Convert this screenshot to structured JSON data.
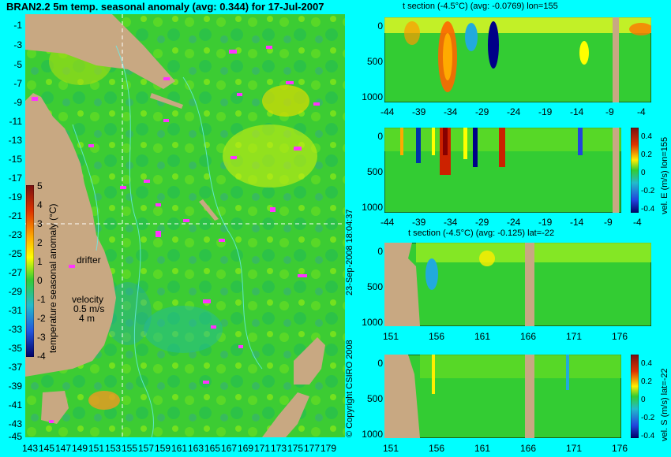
{
  "map": {
    "title": "BRAN2.2 5m temp. seasonal anomaly (avg: 0.344) for 17-Jul-2007",
    "lat_labels": [
      "-1",
      "-3",
      "-5",
      "-7",
      "-9",
      "-11",
      "-13",
      "-15",
      "-17",
      "-19",
      "-21",
      "-23",
      "-25",
      "-27",
      "-29",
      "-31",
      "-33",
      "-35",
      "-37",
      "-39",
      "-41",
      "-43",
      "-45"
    ],
    "lon_labels": [
      "143",
      "145",
      "147",
      "149",
      "151",
      "153",
      "155",
      "157",
      "159",
      "161",
      "163",
      "165",
      "167",
      "169",
      "171",
      "173",
      "175",
      "177",
      "179"
    ],
    "colorbar_label": "temperature seasonal anomaly (°C)",
    "colorbar_ticks": [
      "5",
      "4",
      "3",
      "2",
      "1",
      "0",
      "-1",
      "-2",
      "-3",
      "-4"
    ],
    "drifter_label": "drifter",
    "velocity_label": "velocity",
    "velocity_value": "0.5 m/s",
    "velocity_depth": "4 m",
    "timestamp": "23-Sep-2008 18:04:37",
    "copyright": "© Copyright CSIRO 2008"
  },
  "panels": [
    {
      "title": "t section (-4.5°C) (avg: -0.0769) lon=155",
      "x_labels": [
        "-44",
        "-39",
        "-34",
        "-29",
        "-24",
        "-19",
        "-14",
        "-9",
        "-4"
      ],
      "y_labels": [
        "0",
        "500",
        "1000"
      ],
      "side_label": ""
    },
    {
      "title": "",
      "x_labels": [
        "-44",
        "-39",
        "-34",
        "-29",
        "-24",
        "-19",
        "-14",
        "-9",
        "-4"
      ],
      "y_labels": [
        "0",
        "500",
        "1000"
      ],
      "side_label": "vel. E (m/s) lon=155",
      "cb_ticks": [
        "0.4",
        "0.2",
        "0",
        "-0.2",
        "-0.4"
      ]
    },
    {
      "title": "t section (-4.5°C) (avg: -0.125) lat=-22",
      "x_labels": [
        "151",
        "156",
        "161",
        "166",
        "171",
        "176"
      ],
      "y_labels": [
        "0",
        "500",
        "1000"
      ],
      "side_label": ""
    },
    {
      "title": "",
      "x_labels": [
        "151",
        "156",
        "161",
        "166",
        "171",
        "176"
      ],
      "y_labels": [
        "0",
        "500",
        "1000"
      ],
      "side_label": "vel. S (m/s) lat=-22",
      "cb_ticks": [
        "0.4",
        "0.2",
        "0",
        "-0.2",
        "-0.4"
      ]
    }
  ],
  "colors": {
    "background": "#00ffff",
    "land": "#c8a882",
    "ocean": "#33cc33",
    "drifter": "#ff33ff"
  }
}
